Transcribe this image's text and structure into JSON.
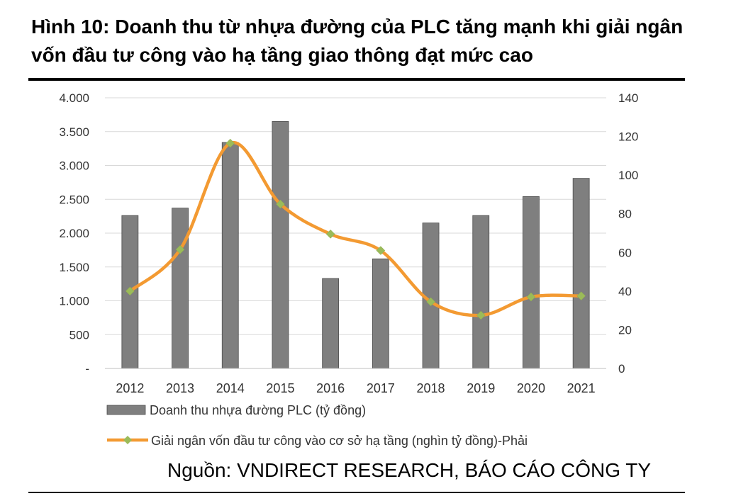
{
  "figure": {
    "title": "Hình 10: Doanh thu từ nhựa đường của PLC tăng mạnh khi giải ngân vốn đầu tư công vào hạ tầng giao thông đạt mức cao",
    "source": "Nguồn: VNDIRECT RESEARCH, BÁO CÁO CÔNG TY"
  },
  "chart_data": {
    "type": "bar+line",
    "categories": [
      "2012",
      "2013",
      "2014",
      "2015",
      "2016",
      "2017",
      "2018",
      "2019",
      "2020",
      "2021"
    ],
    "series": [
      {
        "name": "Doanh thu nhựa đường PLC (tỷ đồng)",
        "kind": "bar",
        "axis": "left",
        "color": "#7f7f7f",
        "values": [
          2260,
          2370,
          3340,
          3650,
          1330,
          1620,
          2150,
          2260,
          2540,
          2810
        ]
      },
      {
        "name": "Giải ngân vốn đầu tư công vào cơ sở hạ tầng (nghìn tỷ đồng)-Phải",
        "kind": "line",
        "axis": "right",
        "color": "#f39a32",
        "marker_color": "#9bbb59",
        "values": [
          40,
          61.5,
          116.5,
          85,
          69.5,
          61,
          34.5,
          27.5,
          37,
          37.5
        ]
      }
    ],
    "y_left": {
      "min": 0,
      "max": 4000,
      "ticks": [
        0,
        500,
        1000,
        1500,
        2000,
        2500,
        3000,
        3500,
        4000
      ],
      "tick_labels": [
        "-",
        "500",
        "1.000",
        "1.500",
        "2.000",
        "2.500",
        "3.000",
        "3.500",
        "4.000"
      ]
    },
    "y_right": {
      "min": 0,
      "max": 140,
      "ticks": [
        0,
        20,
        40,
        60,
        80,
        100,
        120,
        140
      ],
      "tick_labels": [
        "0",
        "20",
        "40",
        "60",
        "80",
        "100",
        "120",
        "140"
      ]
    },
    "grid": true,
    "legend": "bottom"
  }
}
